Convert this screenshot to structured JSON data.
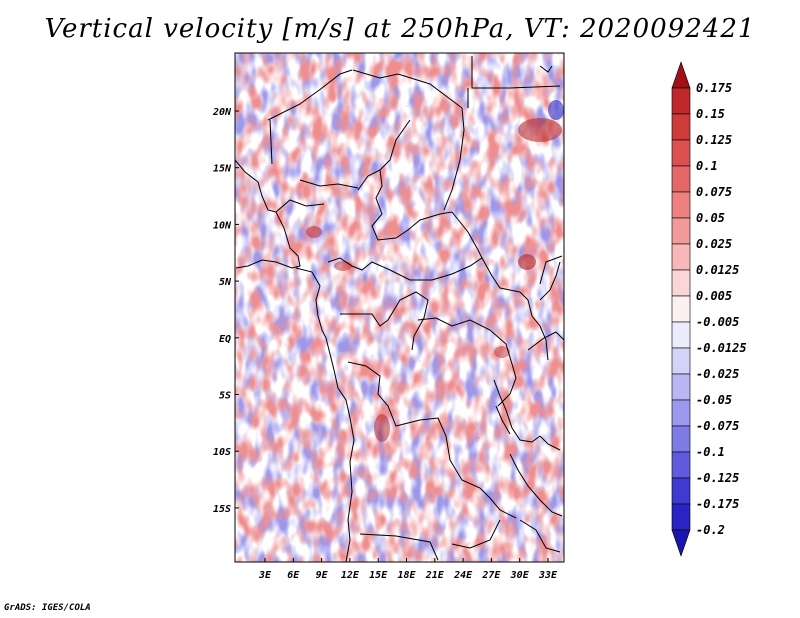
{
  "title": "Vertical velocity [m/s] at 250hPa, VT: 2020092421",
  "credit": "GrADS: IGES/COLA",
  "map": {
    "variable": "Vertical velocity",
    "units": "m/s",
    "level": "250hPa",
    "valid_time": "2020092421",
    "lon_labels": [
      "3E",
      "6E",
      "9E",
      "12E",
      "15E",
      "18E",
      "21E",
      "24E",
      "27E",
      "30E",
      "33E"
    ],
    "lat_labels": [
      "20N",
      "15N",
      "10N",
      "5N",
      "EQ",
      "5S",
      "10S",
      "15S"
    ]
  },
  "colorbar": {
    "labels": [
      "0.175",
      "0.15",
      "0.125",
      "0.1",
      "0.075",
      "0.05",
      "0.025",
      "0.0125",
      "0.005",
      "-0.005",
      "-0.0125",
      "-0.025",
      "-0.05",
      "-0.075",
      "-0.1",
      "-0.125",
      "-0.175",
      "-0.2"
    ],
    "colors": [
      "#a50f15",
      "#c0282a",
      "#cf3b3b",
      "#dc5050",
      "#e66767",
      "#ee8080",
      "#f29a9a",
      "#f6b8b8",
      "#fad6d6",
      "#fdf0f0",
      "#ecebfc",
      "#d3d2f8",
      "#b8b6f3",
      "#9b98ee",
      "#7e7ae6",
      "#5f5ade",
      "#3f3ad2",
      "#2a24c4",
      "#1a14b0"
    ]
  }
}
